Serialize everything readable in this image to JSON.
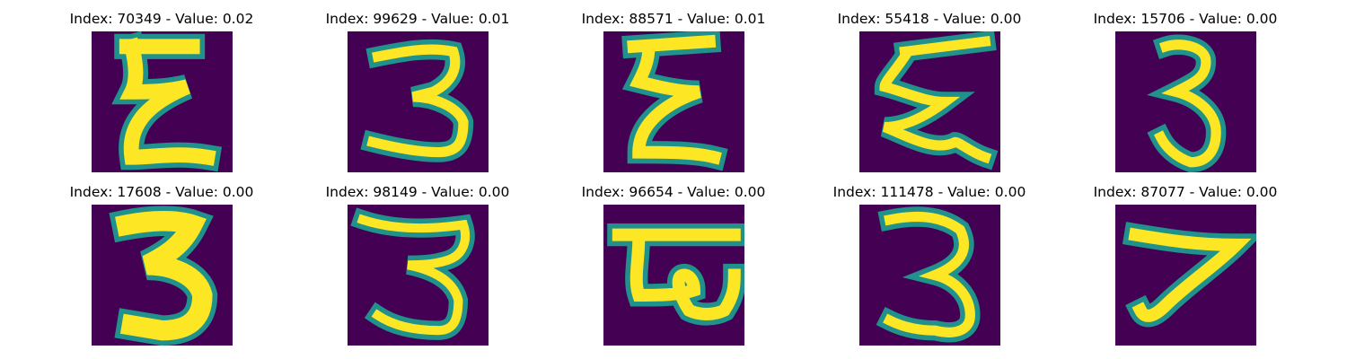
{
  "figure": {
    "palette": {
      "background": "#440154",
      "low": "#3b528b",
      "mid": "#21918c",
      "high": "#5ec962",
      "peak": "#fde725"
    },
    "panels": [
      {
        "title": "Index: 70349 - Value: 0.02"
      },
      {
        "title": "Index: 99629 - Value: 0.01"
      },
      {
        "title": "Index: 88571 - Value: 0.01"
      },
      {
        "title": "Index: 55418 - Value: 0.00"
      },
      {
        "title": "Index: 15706 - Value: 0.00"
      },
      {
        "title": "Index: 17608 - Value: 0.00"
      },
      {
        "title": "Index: 98149 - Value: 0.00"
      },
      {
        "title": "Index: 96654 - Value: 0.00"
      },
      {
        "title": "Index: 111478 - Value: 0.00"
      },
      {
        "title": "Index: 87077 - Value: 0.00"
      }
    ]
  }
}
